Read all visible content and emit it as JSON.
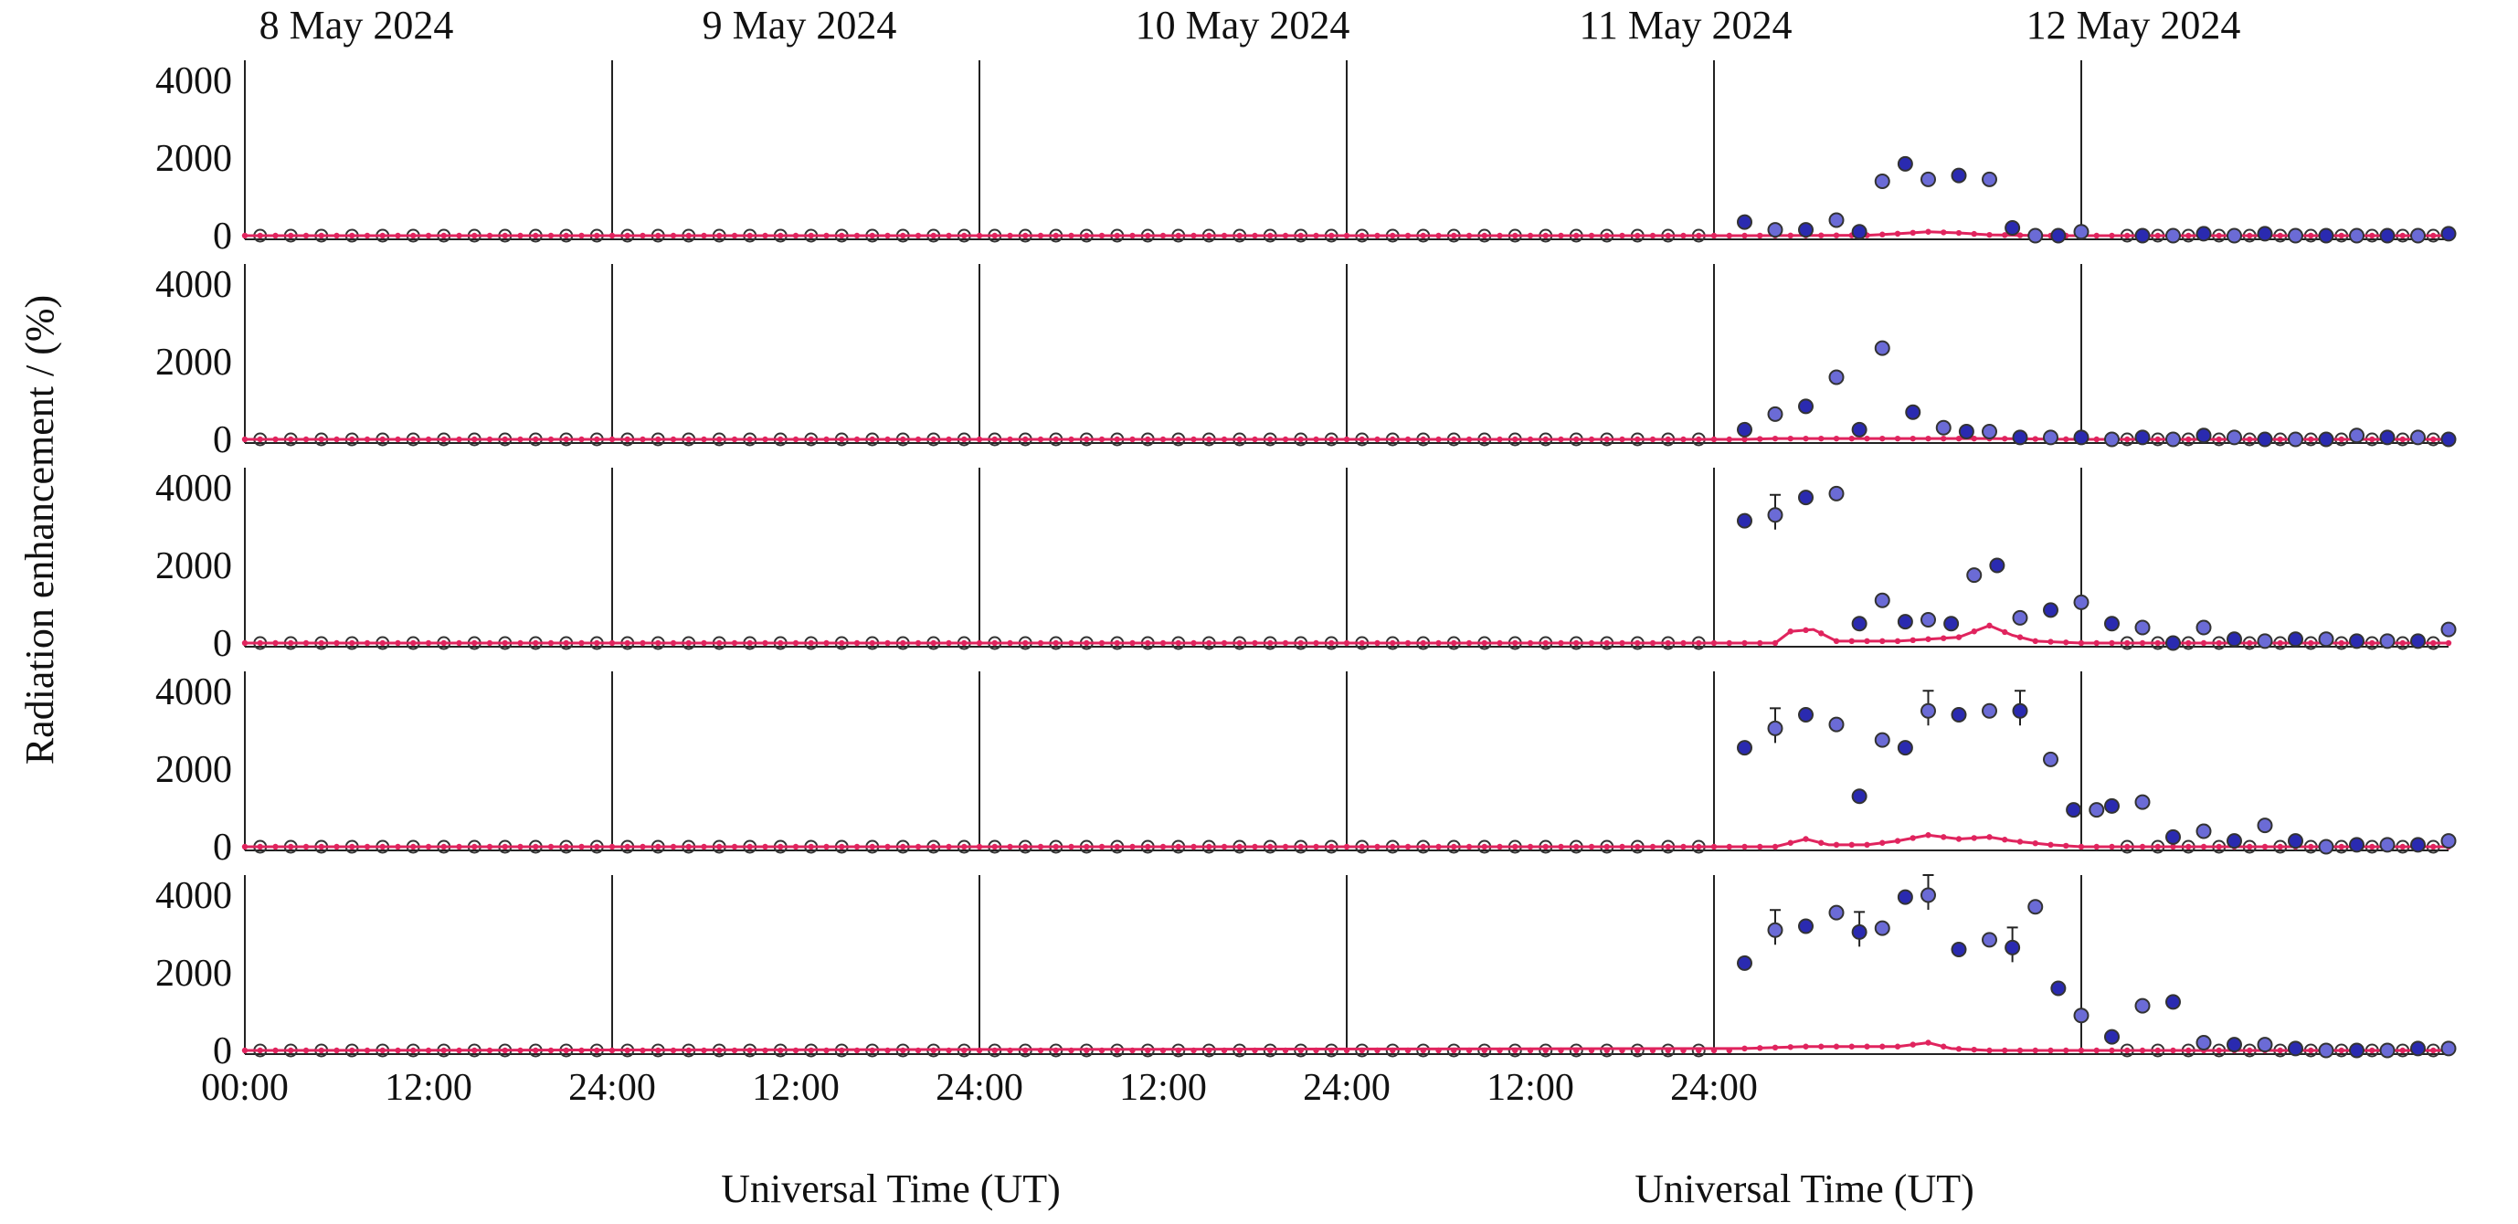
{
  "chart_data": {
    "type": "scatter",
    "title": "",
    "days": [
      "8 May 2024",
      "9 May 2024",
      "10 May 2024",
      "11 May 2024",
      "12 May 2024"
    ],
    "ylabel": "Radiation enhancement / (%)",
    "xlabels": [
      "Universal Time (UT)",
      "Universal Time (UT)"
    ],
    "ylim": [
      0,
      4000
    ],
    "yticks": [
      "4000",
      "2000",
      "0"
    ],
    "xticks": [
      "00:00",
      "12:00",
      "24:00",
      "12:00",
      "24:00",
      "12:00",
      "24:00",
      "12:00",
      "24:00"
    ],
    "xtick_hours": [
      0,
      12,
      24,
      36,
      48,
      60,
      72,
      84,
      96
    ],
    "x_units": "hours since 10 May 2024 00:00 UT",
    "x_start_label": "10 May 2024 00:00",
    "grid": false,
    "legend": "none",
    "colors": {
      "observed": "#2a2ab0",
      "observed_dark": "#333333",
      "model": "#e0245e"
    },
    "panels": [
      {
        "observed": [
          [
            50,
            350
          ],
          [
            52,
            150
          ],
          [
            54,
            150
          ],
          [
            56,
            400
          ],
          [
            57.5,
            100
          ],
          [
            59,
            1400
          ],
          [
            60.5,
            1850
          ],
          [
            62,
            1450
          ],
          [
            64,
            1550
          ],
          [
            66,
            1450
          ],
          [
            67.5,
            200
          ],
          [
            69,
            0
          ],
          [
            70.5,
            0
          ],
          [
            72,
            100
          ],
          [
            76,
            0
          ],
          [
            78,
            0
          ],
          [
            80,
            50
          ],
          [
            82,
            0
          ],
          [
            84,
            50
          ],
          [
            86,
            0
          ],
          [
            88,
            0
          ],
          [
            90,
            0
          ],
          [
            92,
            0
          ],
          [
            94,
            0
          ],
          [
            96,
            50
          ]
        ],
        "model": [
          [
            50,
            0
          ],
          [
            58,
            10
          ],
          [
            60,
            50
          ],
          [
            62,
            100
          ],
          [
            64,
            70
          ],
          [
            66,
            20
          ],
          [
            70,
            0
          ],
          [
            96,
            0
          ]
        ]
      },
      {
        "observed": [
          [
            50,
            250
          ],
          [
            52,
            650
          ],
          [
            54,
            850
          ],
          [
            56,
            1600
          ],
          [
            57.5,
            250
          ],
          [
            59,
            2350
          ],
          [
            61,
            700
          ],
          [
            63,
            300
          ],
          [
            64.5,
            200
          ],
          [
            66,
            200
          ],
          [
            68,
            50
          ],
          [
            70,
            50
          ],
          [
            72,
            50
          ],
          [
            74,
            0
          ],
          [
            76,
            50
          ],
          [
            78,
            0
          ],
          [
            80,
            100
          ],
          [
            82,
            50
          ],
          [
            84,
            0
          ],
          [
            86,
            0
          ],
          [
            88,
            0
          ],
          [
            90,
            100
          ],
          [
            92,
            50
          ],
          [
            94,
            50
          ],
          [
            96,
            0
          ]
        ],
        "model": [
          [
            50,
            0
          ],
          [
            52,
            20
          ],
          [
            60,
            20
          ],
          [
            66,
            20
          ],
          [
            72,
            0
          ],
          [
            96,
            0
          ]
        ]
      },
      {
        "observed": [
          [
            50,
            3150
          ],
          [
            52,
            3300
          ],
          [
            54,
            3750
          ],
          [
            56,
            3850
          ],
          [
            57.5,
            500
          ],
          [
            59,
            1100
          ],
          [
            60.5,
            550
          ],
          [
            62,
            600
          ],
          [
            63.5,
            500
          ],
          [
            65,
            1750
          ],
          [
            66.5,
            2000
          ],
          [
            68,
            650
          ],
          [
            70,
            850
          ],
          [
            72,
            1050
          ],
          [
            74,
            500
          ],
          [
            76,
            400
          ],
          [
            78,
            0
          ],
          [
            80,
            400
          ],
          [
            82,
            100
          ],
          [
            84,
            50
          ],
          [
            86,
            100
          ],
          [
            88,
            100
          ],
          [
            90,
            50
          ],
          [
            92,
            50
          ],
          [
            94,
            50
          ],
          [
            96,
            350
          ]
        ],
        "model": [
          [
            50,
            0
          ],
          [
            52,
            0
          ],
          [
            53,
            300
          ],
          [
            54.5,
            350
          ],
          [
            56,
            50
          ],
          [
            60,
            50
          ],
          [
            62,
            100
          ],
          [
            64,
            150
          ],
          [
            66,
            450
          ],
          [
            67.5,
            200
          ],
          [
            69,
            50
          ],
          [
            72,
            0
          ],
          [
            96,
            0
          ]
        ]
      },
      {
        "observed": [
          [
            50,
            2550
          ],
          [
            52,
            3050
          ],
          [
            54,
            3400
          ],
          [
            56,
            3150
          ],
          [
            57.5,
            1300
          ],
          [
            59,
            2750
          ],
          [
            60.5,
            2550
          ],
          [
            62,
            3500
          ],
          [
            64,
            3400
          ],
          [
            66,
            3500
          ],
          [
            68,
            3500
          ],
          [
            70,
            2250
          ],
          [
            71.5,
            950
          ],
          [
            73,
            950
          ],
          [
            74,
            1050
          ],
          [
            76,
            1150
          ],
          [
            78,
            250
          ],
          [
            80,
            400
          ],
          [
            82,
            150
          ],
          [
            84,
            550
          ],
          [
            86,
            150
          ],
          [
            88,
            0
          ],
          [
            90,
            50
          ],
          [
            92,
            50
          ],
          [
            94,
            50
          ],
          [
            96,
            150
          ]
        ],
        "model": [
          [
            50,
            0
          ],
          [
            52,
            0
          ],
          [
            54,
            200
          ],
          [
            55.5,
            50
          ],
          [
            58,
            50
          ],
          [
            60,
            150
          ],
          [
            62,
            300
          ],
          [
            64,
            200
          ],
          [
            66,
            250
          ],
          [
            67.5,
            150
          ],
          [
            70,
            50
          ],
          [
            72,
            0
          ],
          [
            96,
            0
          ]
        ]
      },
      {
        "observed": [
          [
            50,
            2250
          ],
          [
            52,
            3100
          ],
          [
            54,
            3200
          ],
          [
            56,
            3550
          ],
          [
            57.5,
            3050
          ],
          [
            59,
            3150
          ],
          [
            60.5,
            3950
          ],
          [
            62,
            4000
          ],
          [
            64,
            2600
          ],
          [
            66,
            2850
          ],
          [
            67.5,
            2650
          ],
          [
            69,
            3700
          ],
          [
            70.5,
            1600
          ],
          [
            72,
            900
          ],
          [
            74,
            350
          ],
          [
            76,
            1150
          ],
          [
            78,
            1250
          ],
          [
            80,
            200
          ],
          [
            82,
            150
          ],
          [
            84,
            150
          ],
          [
            86,
            50
          ],
          [
            88,
            0
          ],
          [
            90,
            0
          ],
          [
            92,
            0
          ],
          [
            94,
            50
          ],
          [
            96,
            50
          ]
        ],
        "model": [
          [
            50,
            50
          ],
          [
            54,
            100
          ],
          [
            58,
            100
          ],
          [
            60,
            100
          ],
          [
            62,
            200
          ],
          [
            63.5,
            50
          ],
          [
            66,
            0
          ],
          [
            96,
            0
          ]
        ]
      }
    ]
  }
}
